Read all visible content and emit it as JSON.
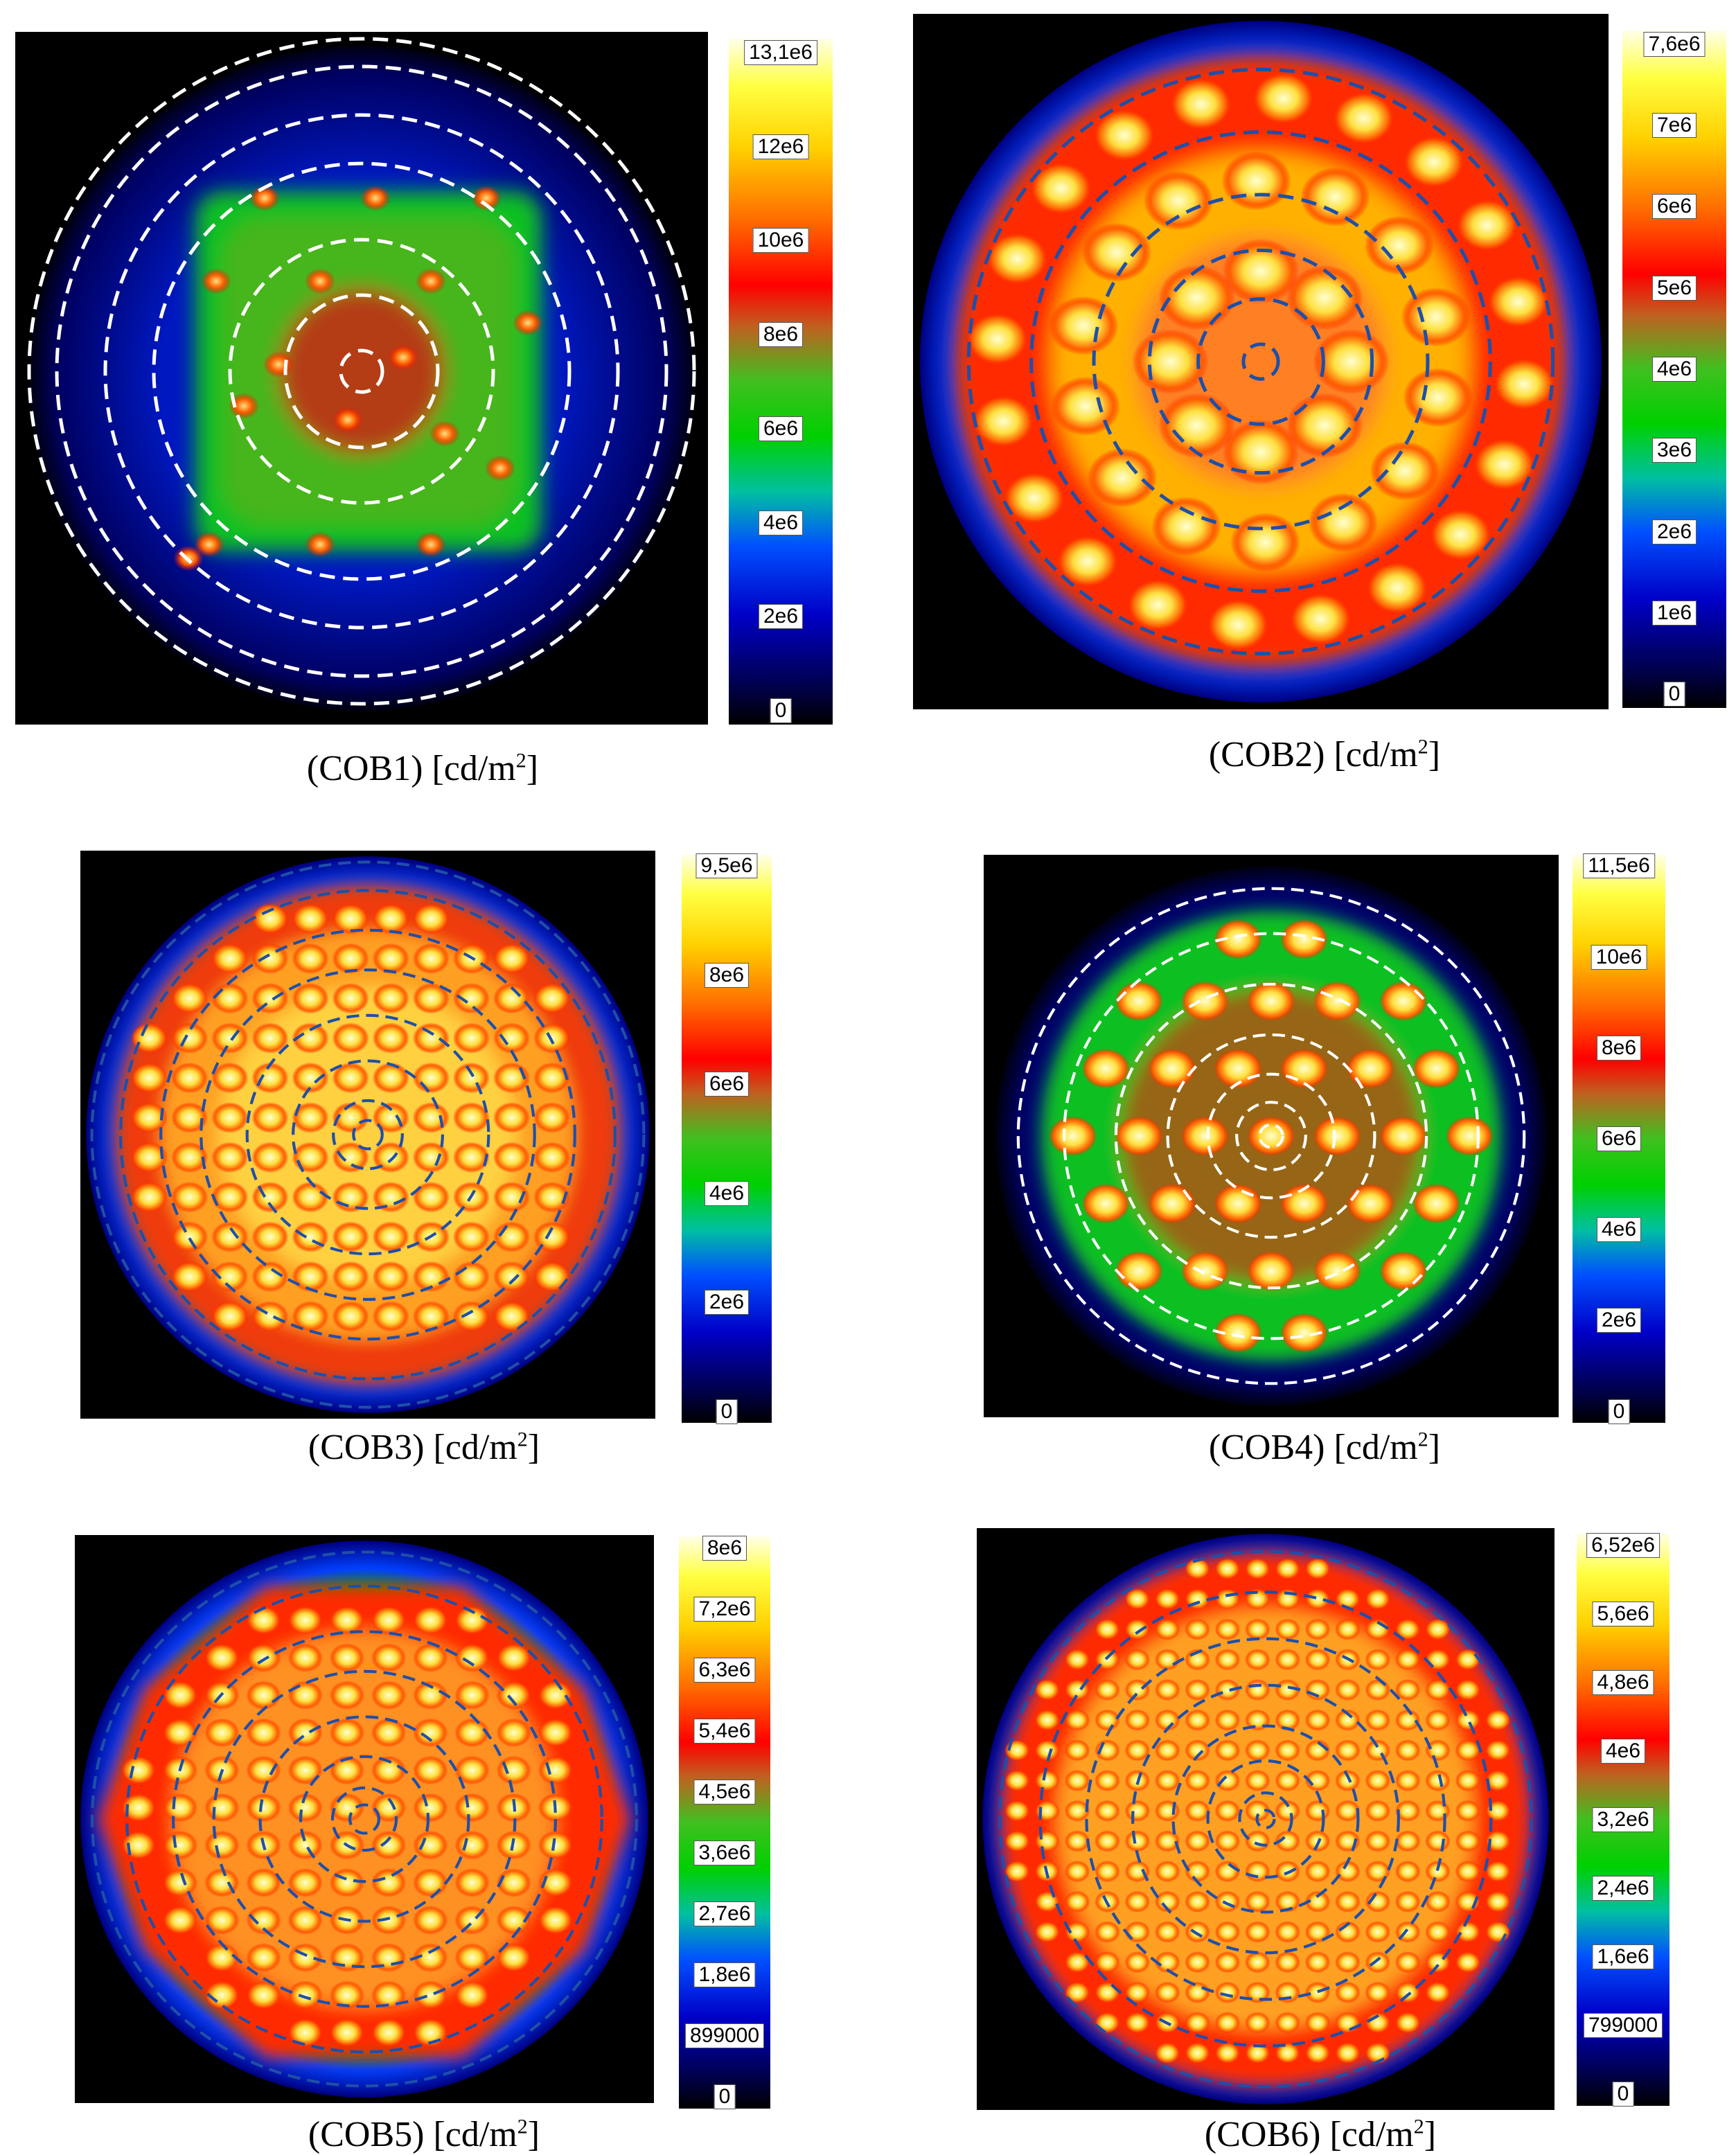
{
  "panels": [
    {
      "id": "cob1",
      "caption": "(COB1) [cd/m²]",
      "caption_name": "COB1",
      "caption_unit": "[cd/m",
      "sup": "2",
      "tail": "]",
      "scale": [
        "13,1e6",
        "12e6",
        "10e6",
        "8e6",
        "6e6",
        "4e6",
        "2e6",
        "0"
      ],
      "ring_color": "#ffffff",
      "pattern": "square-green-spots"
    },
    {
      "id": "cob2",
      "caption": "(COB2) [cd/m²]",
      "caption_name": "COB2",
      "caption_unit": "[cd/m",
      "sup": "2",
      "tail": "]",
      "scale": [
        "7,6e6",
        "7e6",
        "6e6",
        "5e6",
        "4e6",
        "3e6",
        "2e6",
        "1e6",
        "0"
      ],
      "ring_color": "#1f4fa8",
      "pattern": "bright-disc-blobs"
    },
    {
      "id": "cob3",
      "caption": "(COB3) [cd/m²]",
      "caption_name": "COB3",
      "caption_unit": "[cd/m",
      "sup": "2",
      "tail": "]",
      "scale": [
        "9,5e6",
        "8e6",
        "6e6",
        "4e6",
        "2e6",
        "0"
      ],
      "ring_color": "#1f4fa8",
      "pattern": "uniform-bright-disc"
    },
    {
      "id": "cob4",
      "caption": "(COB4) [cd/m²]",
      "caption_name": "COB4",
      "caption_unit": "[cd/m",
      "sup": "2",
      "tail": "]",
      "scale": [
        "11,5e6",
        "10e6",
        "8e6",
        "6e6",
        "4e6",
        "2e6",
        "0"
      ],
      "ring_color": "#ffffff",
      "pattern": "hex-led-spots"
    },
    {
      "id": "cob5",
      "caption": "(COB5) [cd/m²]",
      "caption_name": "COB5",
      "caption_unit": "[cd/m",
      "sup": "2",
      "tail": "]",
      "scale": [
        "8e6",
        "7,2e6",
        "6,3e6",
        "5,4e6",
        "4,5e6",
        "3,6e6",
        "2,7e6",
        "1,8e6",
        "899000",
        "0"
      ],
      "ring_color": "#1f4fa8",
      "pattern": "octagon-grid"
    },
    {
      "id": "cob6",
      "caption": "(COB6) [cd/m²]",
      "caption_name": "COB6",
      "caption_unit": "[cd/m",
      "sup": "2",
      "tail": "]",
      "scale": [
        "6,52e6",
        "5,6e6",
        "4,8e6",
        "4e6",
        "3,2e6",
        "2,4e6",
        "1,6e6",
        "799000",
        "0"
      ],
      "ring_color": "#1f4fa8",
      "pattern": "dense-grid"
    }
  ]
}
